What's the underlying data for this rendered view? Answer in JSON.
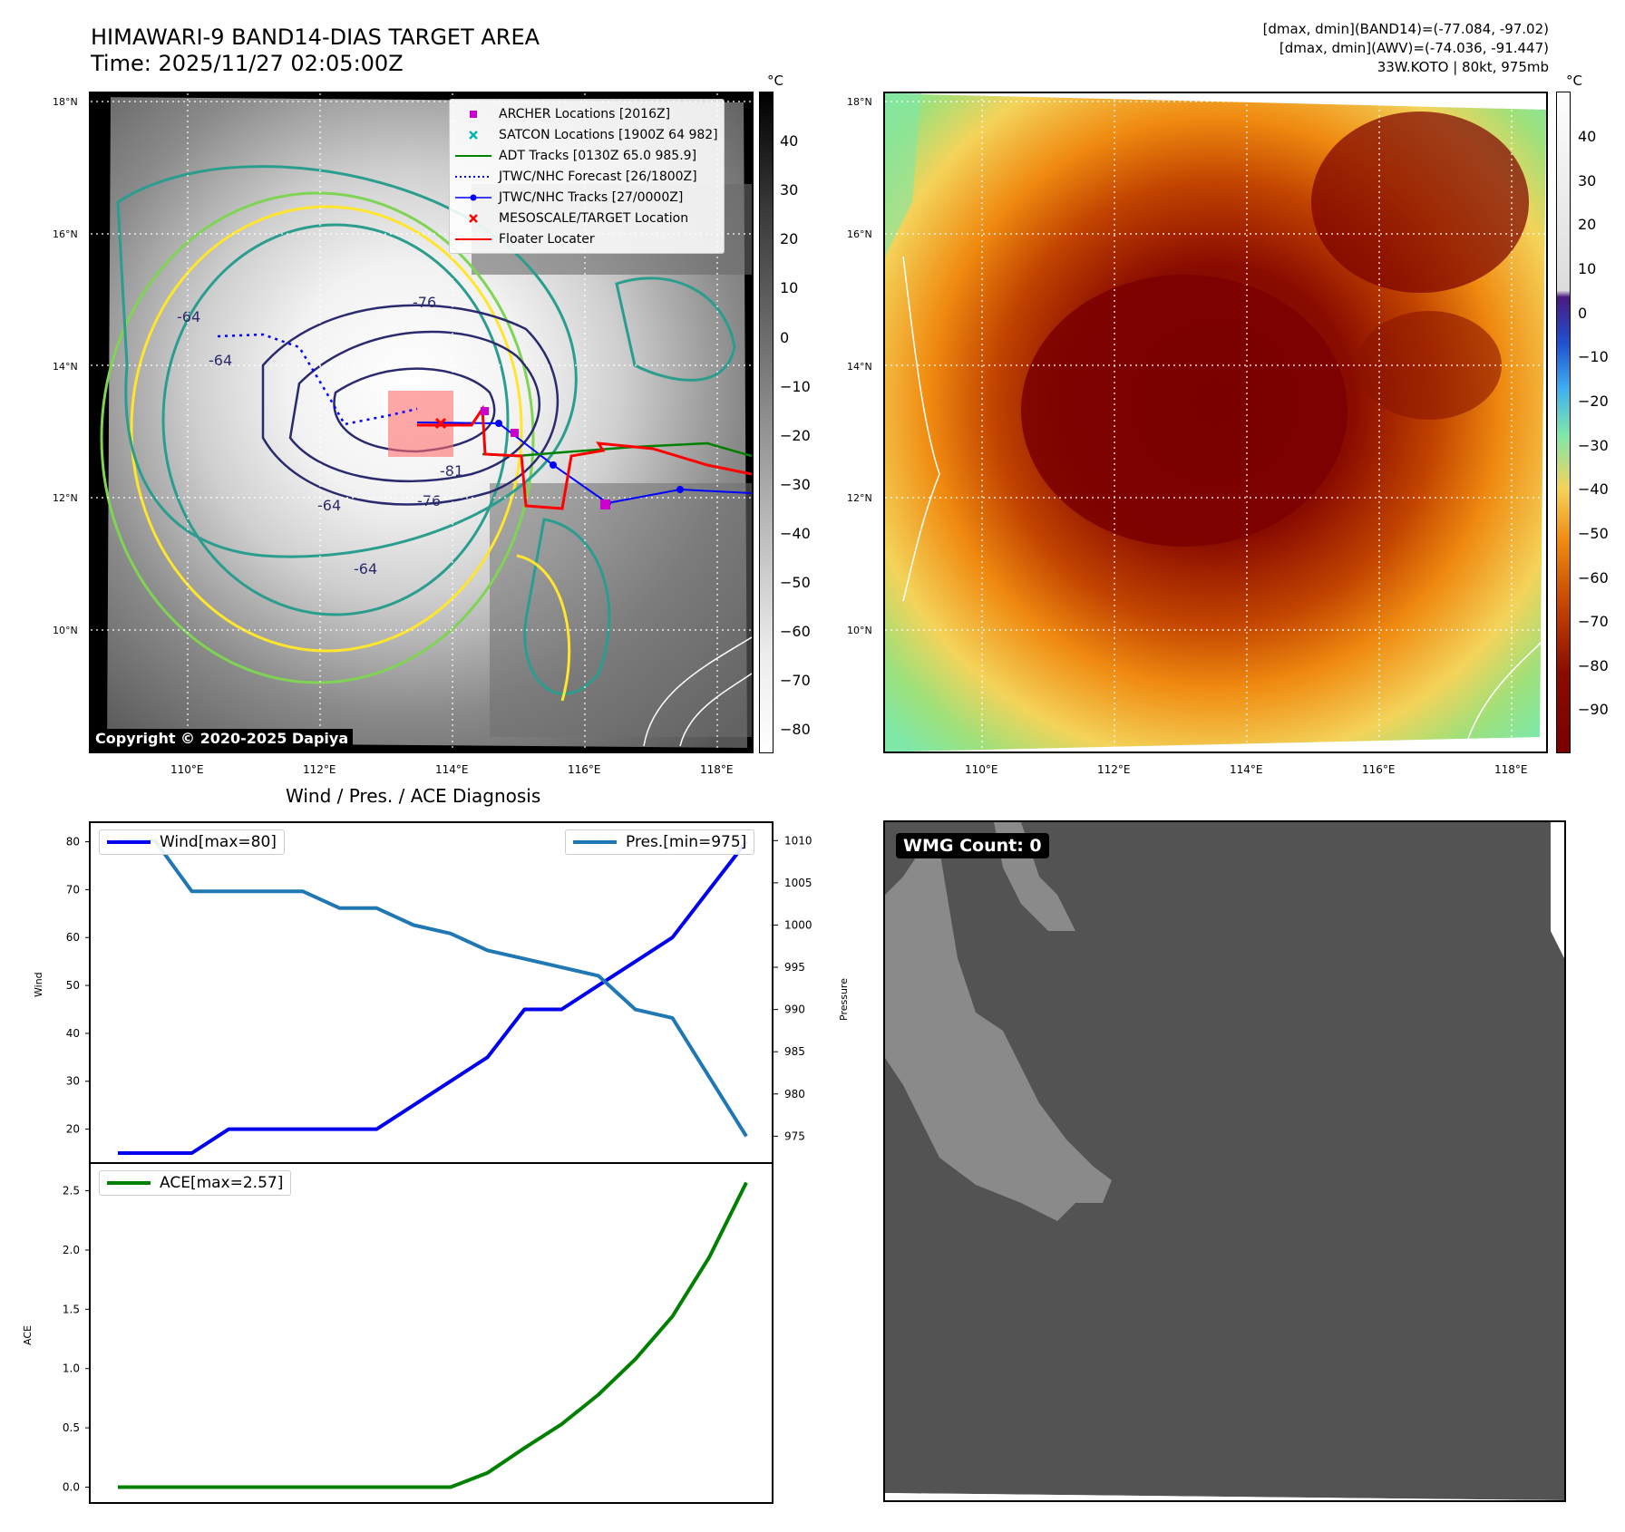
{
  "header": {
    "title_line1": "HIMAWARI-9 BAND14-DIAS TARGET AREA",
    "title_line2": "Time: 2025/11/27 02:05:00Z",
    "meta_line1": "[dmax, dmin](BAND14)=(-77.084, -97.02)",
    "meta_line2": "[dmax, dmin](AWV)=(-74.036, -91.447)",
    "meta_line3": "33W.KOTO | 80kt, 975mb"
  },
  "left_map": {
    "lat_labels": [
      "18°N",
      "16°N",
      "14°N",
      "12°N",
      "10°N"
    ],
    "lon_labels": [
      "110°E",
      "112°E",
      "114°E",
      "116°E",
      "118°E"
    ],
    "copyright": "Copyright © 2020-2025 Dapiya",
    "contour_labels": [
      "-76",
      "-64",
      "-64",
      "-81",
      "-76",
      "-64",
      "-64"
    ],
    "legend": [
      {
        "label": "ARCHER Locations [2016Z]",
        "color": "#cc00cc",
        "marker": "square"
      },
      {
        "label": "SATCON Locations [1900Z 64 982]",
        "color": "#00b3b3",
        "marker": "x"
      },
      {
        "label": "ADT Tracks [0130Z 65.0 985.9]",
        "color": "#008000",
        "marker": "line"
      },
      {
        "label": "JTWC/NHC Forecast [26/1800Z]",
        "color": "#0000ff",
        "marker": "dotted"
      },
      {
        "label": "JTWC/NHC Tracks [27/0000Z]",
        "color": "#0000ff",
        "marker": "line-dot"
      },
      {
        "label": "MESOSCALE/TARGET Location",
        "color": "#ff0000",
        "marker": "x"
      },
      {
        "label": "Floater Locater",
        "color": "#ff0000",
        "marker": "line"
      }
    ]
  },
  "left_colorbar": {
    "unit": "°C",
    "ticks": [
      "40",
      "30",
      "20",
      "10",
      "0",
      "−10",
      "−20",
      "−30",
      "−40",
      "−50",
      "−60",
      "−70",
      "−80"
    ]
  },
  "right_map": {
    "lat_labels": [
      "18°N",
      "16°N",
      "14°N",
      "12°N",
      "10°N"
    ],
    "lon_labels": [
      "110°E",
      "112°E",
      "114°E",
      "116°E",
      "118°E"
    ]
  },
  "right_colorbar": {
    "unit": "°C",
    "ticks": [
      "40",
      "30",
      "20",
      "10",
      "0",
      "−10",
      "−20",
      "−30",
      "−40",
      "−50",
      "−60",
      "−70",
      "−80",
      "−90"
    ]
  },
  "wmg": {
    "label": "WMG Count: 0"
  },
  "chart_data": [
    {
      "type": "line",
      "title": "Wind / Pres. / ACE Diagnosis",
      "ylabel": "Wind",
      "ylabel_right": "Pressure",
      "ylim": [
        15,
        82
      ],
      "ylim_right": [
        973,
        1011
      ],
      "yticks": [
        20,
        30,
        40,
        50,
        60,
        70,
        80
      ],
      "yticks_right": [
        975,
        980,
        985,
        990,
        995,
        1000,
        1005,
        1010
      ],
      "series": [
        {
          "name": "Wind[max=80]",
          "color": "#0000ee",
          "axis": "left",
          "values": [
            15,
            15,
            15,
            20,
            20,
            20,
            20,
            20,
            25,
            30,
            35,
            45,
            45,
            50,
            55,
            60,
            70,
            80
          ]
        },
        {
          "name": "Pres.[min=975]",
          "color": "#1f77b4",
          "axis": "right",
          "values": [
            1010,
            1010,
            1004,
            1004,
            1004,
            1004,
            1002,
            1002,
            1000,
            999,
            997,
            996,
            995,
            994,
            990,
            989,
            982,
            975
          ]
        }
      ]
    },
    {
      "type": "line",
      "ylabel": "ACE",
      "ylim": [
        -0.05,
        2.65
      ],
      "yticks": [
        0.0,
        0.5,
        1.0,
        1.5,
        2.0,
        2.5
      ],
      "ytick_labels": [
        "0.0",
        "0.5",
        "1.0",
        "1.5",
        "2.0",
        "2.5"
      ],
      "series": [
        {
          "name": "ACE[max=2.57]",
          "color": "#008000",
          "values": [
            0,
            0,
            0,
            0,
            0,
            0,
            0,
            0,
            0,
            0,
            0.12,
            0.33,
            0.53,
            0.78,
            1.08,
            1.44,
            1.94,
            2.57
          ]
        }
      ]
    }
  ]
}
